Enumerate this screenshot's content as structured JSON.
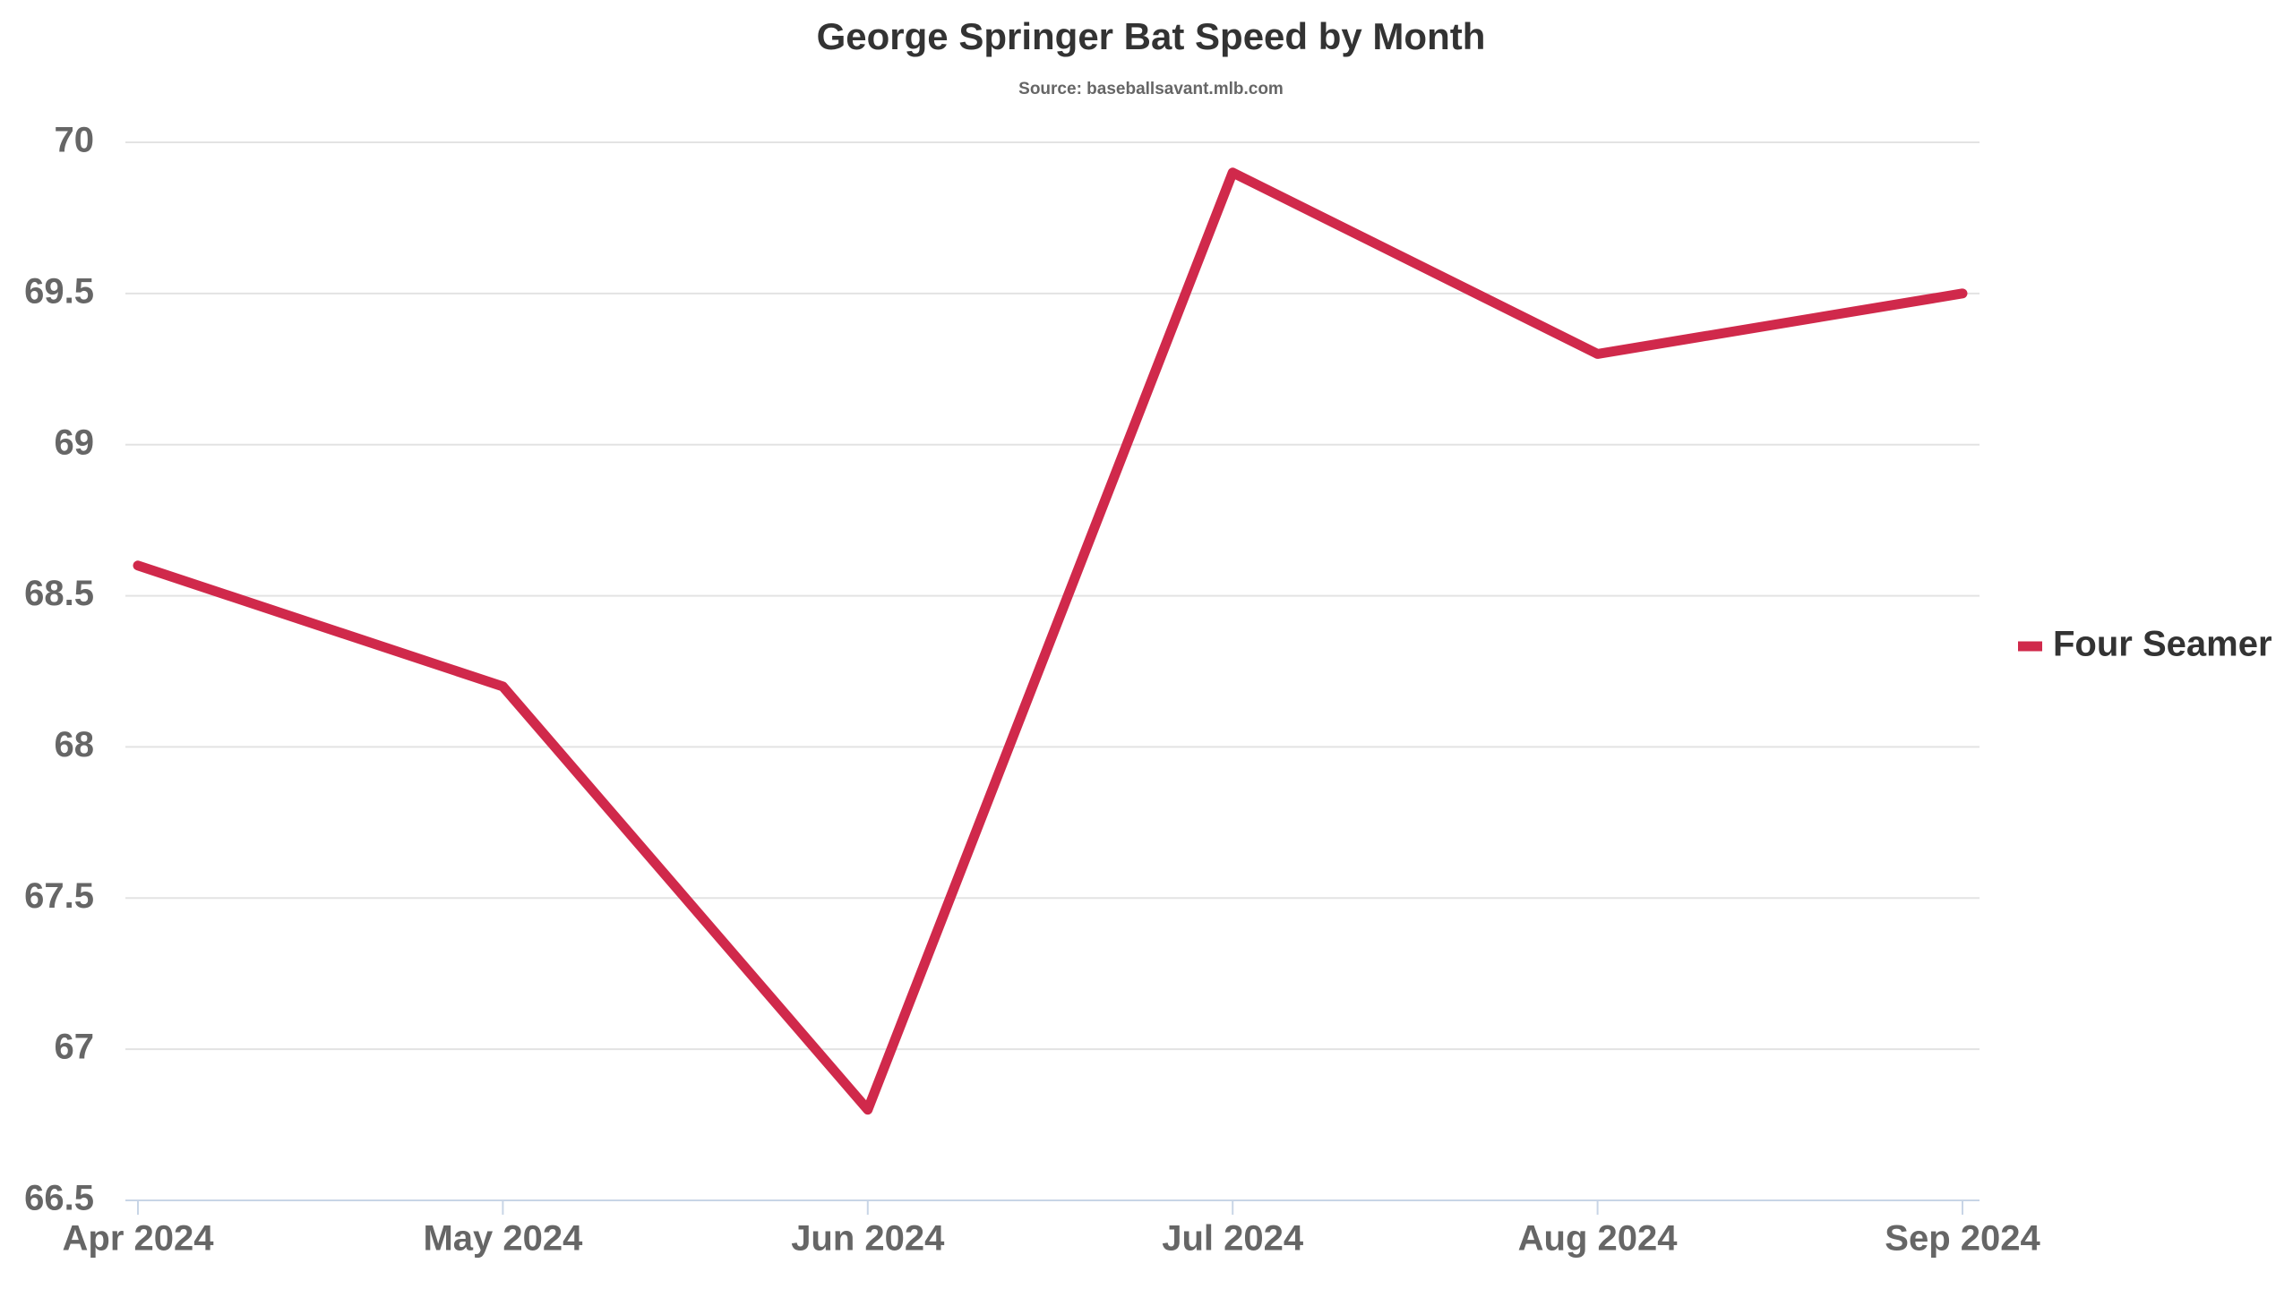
{
  "chart_data": {
    "type": "line",
    "title": "George Springer Bat Speed by Month",
    "subtitle": "Source: baseballsavant.mlb.com",
    "categories": [
      "Apr 2024",
      "May 2024",
      "Jun 2024",
      "Jul 2024",
      "Aug 2024",
      "Sep 2024"
    ],
    "series": [
      {
        "name": "Four Seamer",
        "color": "#d0294b",
        "values": [
          68.6,
          68.2,
          66.8,
          69.9,
          69.3,
          69.5
        ]
      }
    ],
    "ylim": [
      66.5,
      70
    ],
    "yticks": [
      66.5,
      67,
      67.5,
      68,
      68.5,
      69,
      69.5,
      70
    ],
    "grid": true,
    "legend": "right"
  }
}
